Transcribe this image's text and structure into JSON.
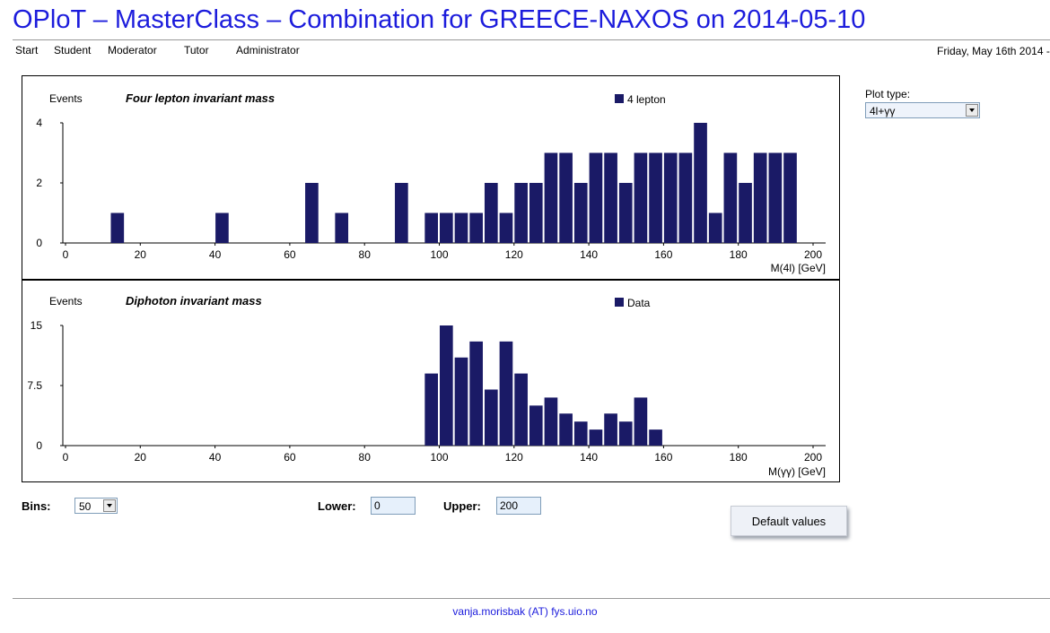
{
  "page": {
    "title": "OPloT – MasterClass – Combination for GREECE-NAXOS on 2014-05-10",
    "date": "Friday, May 16th 2014 -",
    "footer_email": "vanja.morisbak (AT) fys.uio.no"
  },
  "nav": {
    "items": [
      {
        "label": "Start"
      },
      {
        "label": "Student"
      },
      {
        "label": "Moderator"
      },
      {
        "label": "Tutor"
      },
      {
        "label": "Administrator"
      }
    ]
  },
  "controls": {
    "plot_type_label": "Plot type:",
    "plot_type_value": "4l+γγ",
    "bins_label": "Bins:",
    "bins_value": "50",
    "lower_label": "Lower:",
    "lower_value": "0",
    "upper_label": "Upper:",
    "upper_value": "200",
    "default_button": "Default values"
  },
  "colors": {
    "bar": "#1a1a66",
    "title": "#1c1cdc"
  },
  "chart_data": [
    {
      "type": "bar",
      "title": "Four lepton invariant mass",
      "ylabel": "Events",
      "xlabel": "M(4l) [GeV]",
      "legend": "4 lepton",
      "legend_position": "top-right",
      "xlim": [
        0,
        200
      ],
      "ylim": [
        0,
        4
      ],
      "x_ticks": [
        "0",
        "20",
        "40",
        "60",
        "80",
        "100",
        "120",
        "140",
        "160",
        "180",
        "200"
      ],
      "y_ticks": [
        "0",
        "2",
        "4"
      ],
      "y_tick_values": [
        0,
        2,
        4
      ],
      "bin_width": 4,
      "bins": [
        {
          "x": 12,
          "y": 1
        },
        {
          "x": 40,
          "y": 1
        },
        {
          "x": 64,
          "y": 2
        },
        {
          "x": 72,
          "y": 1
        },
        {
          "x": 88,
          "y": 2
        },
        {
          "x": 96,
          "y": 1
        },
        {
          "x": 100,
          "y": 1
        },
        {
          "x": 104,
          "y": 1
        },
        {
          "x": 108,
          "y": 1
        },
        {
          "x": 112,
          "y": 2
        },
        {
          "x": 116,
          "y": 1
        },
        {
          "x": 120,
          "y": 2
        },
        {
          "x": 124,
          "y": 2
        },
        {
          "x": 128,
          "y": 3
        },
        {
          "x": 132,
          "y": 3
        },
        {
          "x": 136,
          "y": 2
        },
        {
          "x": 140,
          "y": 3
        },
        {
          "x": 144,
          "y": 3
        },
        {
          "x": 148,
          "y": 2
        },
        {
          "x": 152,
          "y": 3
        },
        {
          "x": 156,
          "y": 3
        },
        {
          "x": 160,
          "y": 3
        },
        {
          "x": 164,
          "y": 3
        },
        {
          "x": 168,
          "y": 4
        },
        {
          "x": 172,
          "y": 1
        },
        {
          "x": 176,
          "y": 3
        },
        {
          "x": 180,
          "y": 2
        },
        {
          "x": 184,
          "y": 3
        },
        {
          "x": 188,
          "y": 3
        },
        {
          "x": 192,
          "y": 3
        }
      ]
    },
    {
      "type": "bar",
      "title": "Diphoton invariant mass",
      "ylabel": "Events",
      "xlabel": "M(γγ) [GeV]",
      "legend": "Data",
      "legend_position": "top-right",
      "xlim": [
        0,
        200
      ],
      "ylim": [
        0,
        15
      ],
      "x_ticks": [
        "0",
        "20",
        "40",
        "60",
        "80",
        "100",
        "120",
        "140",
        "160",
        "180",
        "200"
      ],
      "y_ticks": [
        "0",
        "7.5",
        "15"
      ],
      "y_tick_values": [
        0,
        7.5,
        15
      ],
      "bin_width": 4,
      "bins": [
        {
          "x": 96,
          "y": 9
        },
        {
          "x": 100,
          "y": 15
        },
        {
          "x": 104,
          "y": 11
        },
        {
          "x": 108,
          "y": 13
        },
        {
          "x": 112,
          "y": 7
        },
        {
          "x": 116,
          "y": 13
        },
        {
          "x": 120,
          "y": 9
        },
        {
          "x": 124,
          "y": 5
        },
        {
          "x": 128,
          "y": 6
        },
        {
          "x": 132,
          "y": 4
        },
        {
          "x": 136,
          "y": 3
        },
        {
          "x": 140,
          "y": 2
        },
        {
          "x": 144,
          "y": 4
        },
        {
          "x": 148,
          "y": 3
        },
        {
          "x": 152,
          "y": 6
        },
        {
          "x": 156,
          "y": 2
        }
      ]
    }
  ]
}
